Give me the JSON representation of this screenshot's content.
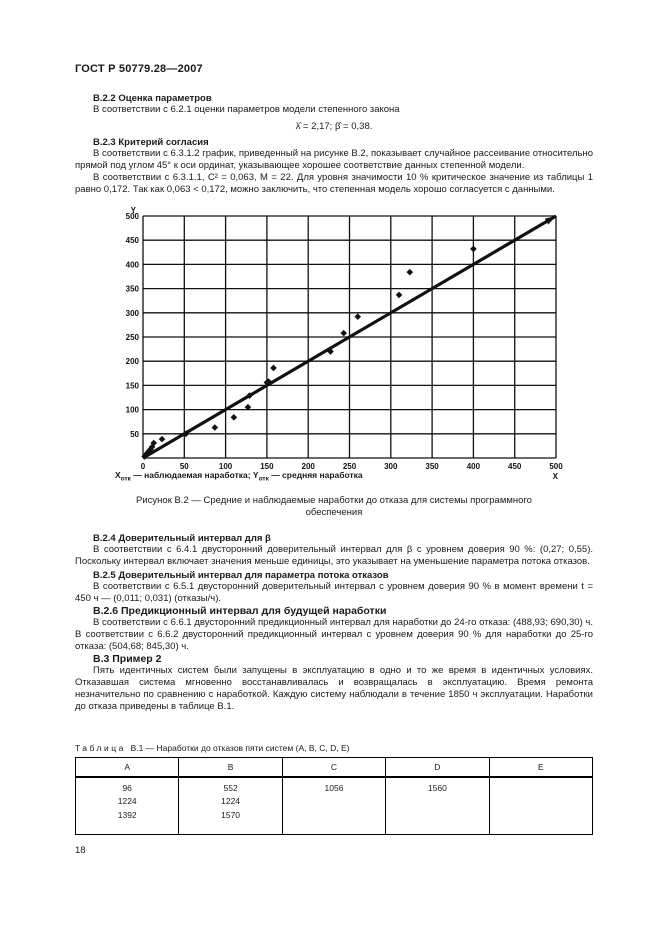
{
  "header": {
    "title": "ГОСТ Р 50779.28—2007"
  },
  "sections": {
    "b22": {
      "heading": "В.2.2  Оценка параметров",
      "intro": "В соответствии с 6.2.1 оценки параметров модели степенного закона",
      "formula": "λ̂  = 2,17; β̂  = 0,38."
    },
    "b23": {
      "heading": "В.2.3  Критерий согласия",
      "para1": "В соответствии с 6.3.1.2 график, приведенный на рисунке В.2, показывает случайное рассеивание относительно прямой под углом 45° к оси ординат, указывающее хорошее соответствие данных степенной модели.",
      "para2": "В соответствии с 6.3.1.1, C² = 0,063, M = 22. Для уровня значимости 10 % критическое значение из таблицы 1 равно 0,172. Так как 0,063 < 0,172, можно заключить, что степенная модель хорошо согласуется с данными."
    },
    "b24": {
      "heading": "В.2.4  Доверительный интервал для β",
      "para": "В соответствии с 6.4.1 двусторонний доверительный интервал для β с уровнем доверия 90 %: (0,27; 0,55). Поскольку интервал включает значения меньше единицы, это указывает на уменьшение параметра потока отказов."
    },
    "b25": {
      "heading": "В.2.5  Доверительный интервал для параметра потока отказов",
      "para": "В соответствии с 6.5.1 двусторонний доверительный интервал с уровнем доверия 90 % в момент времени t = 450 ч — (0,011; 0,031) (отказы/ч)."
    },
    "b26": {
      "heading": "В.2.6  Предикционный интервал для будущей наработки",
      "para": "В соответствии с 6.6.1 двусторонний предикционный интервал для наработки до 24-го отказа: (488,93; 690,30) ч. В соответствии с 6.6.2 двусторонний предикционный интервал с уровнем доверия 90 % для наработки до 25-го отказа: (504,68; 845,30) ч."
    },
    "b3": {
      "heading": "В.3 Пример 2",
      "para": "Пять идентичных систем были запущены в эксплуатацию в одно и то же время в идентичных условиях. Отказавшая система мгновенно восстанавливалась и возвращалась в эксплуатацию. Время ремонта незначительно по сравнению с наработкой. Каждую систему наблюдали в течение 1850 ч эксплуатации. Наработки до отказа приведены в таблице В.1."
    }
  },
  "figure": {
    "caption": "Рисунок В.2 — Средние и наблюдаемые наработки до отказа для системы программного обеспечения",
    "note": {
      "x_sym": "X",
      "x_sub": "отк",
      "x_text": " — наблюдаемая наработка; ",
      "y_sym": "Y",
      "y_sub": "отк",
      "y_text": " — средняя наработка"
    }
  },
  "chart_data": {
    "type": "scatter",
    "title": "Рисунок В.2 — Средние и наблюдаемые наработки до отказа для системы программного обеспечения",
    "xlabel": "Xотк — наблюдаемая наработка",
    "ylabel": "Yотк — средняя наработка",
    "x_axis_letter": "X",
    "y_axis_letter": "Y",
    "xlim": [
      0,
      500
    ],
    "ylim": [
      0,
      500
    ],
    "tick_step": 50,
    "x_tick_labels": [
      "0",
      "50",
      "100",
      "150",
      "200",
      "250",
      "300",
      "350",
      "400",
      "450",
      "500"
    ],
    "y_tick_labels": [
      "50",
      "100",
      "150",
      "200",
      "250",
      "300",
      "350",
      "400",
      "450",
      "500"
    ],
    "grid": true,
    "reference_line": {
      "from": [
        0,
        0
      ],
      "to": [
        500,
        500
      ],
      "description": "прямая под углом 45°",
      "arrow": true
    },
    "points": [
      [
        2,
        3
      ],
      [
        4,
        7
      ],
      [
        5,
        10
      ],
      [
        7,
        14
      ],
      [
        9,
        18
      ],
      [
        11,
        23
      ],
      [
        13,
        31
      ],
      [
        23,
        39
      ],
      [
        52,
        50
      ],
      [
        87,
        63
      ],
      [
        110,
        84
      ],
      [
        127,
        105
      ],
      [
        129,
        129
      ],
      [
        150,
        156
      ],
      [
        152,
        158
      ],
      [
        158,
        186
      ],
      [
        227,
        220
      ],
      [
        243,
        258
      ],
      [
        260,
        292
      ],
      [
        310,
        337
      ],
      [
        323,
        384
      ],
      [
        400,
        432
      ]
    ],
    "marker": "diamond",
    "colors": {
      "ink": "#111111"
    }
  },
  "table": {
    "label_word": "Таблица",
    "label_text": "В.1 — Наработки до отказов пяти систем (А, В, С, D, Е)",
    "columns": [
      {
        "header": "А",
        "values": [
          "96",
          "1224",
          "1392"
        ]
      },
      {
        "header": "В",
        "values": [
          "552",
          "1224",
          "1570"
        ]
      },
      {
        "header": "С",
        "values": [
          "1056"
        ]
      },
      {
        "header": "D",
        "values": [
          "1560"
        ]
      },
      {
        "header": "Е",
        "values": []
      }
    ]
  },
  "page_number": "18"
}
